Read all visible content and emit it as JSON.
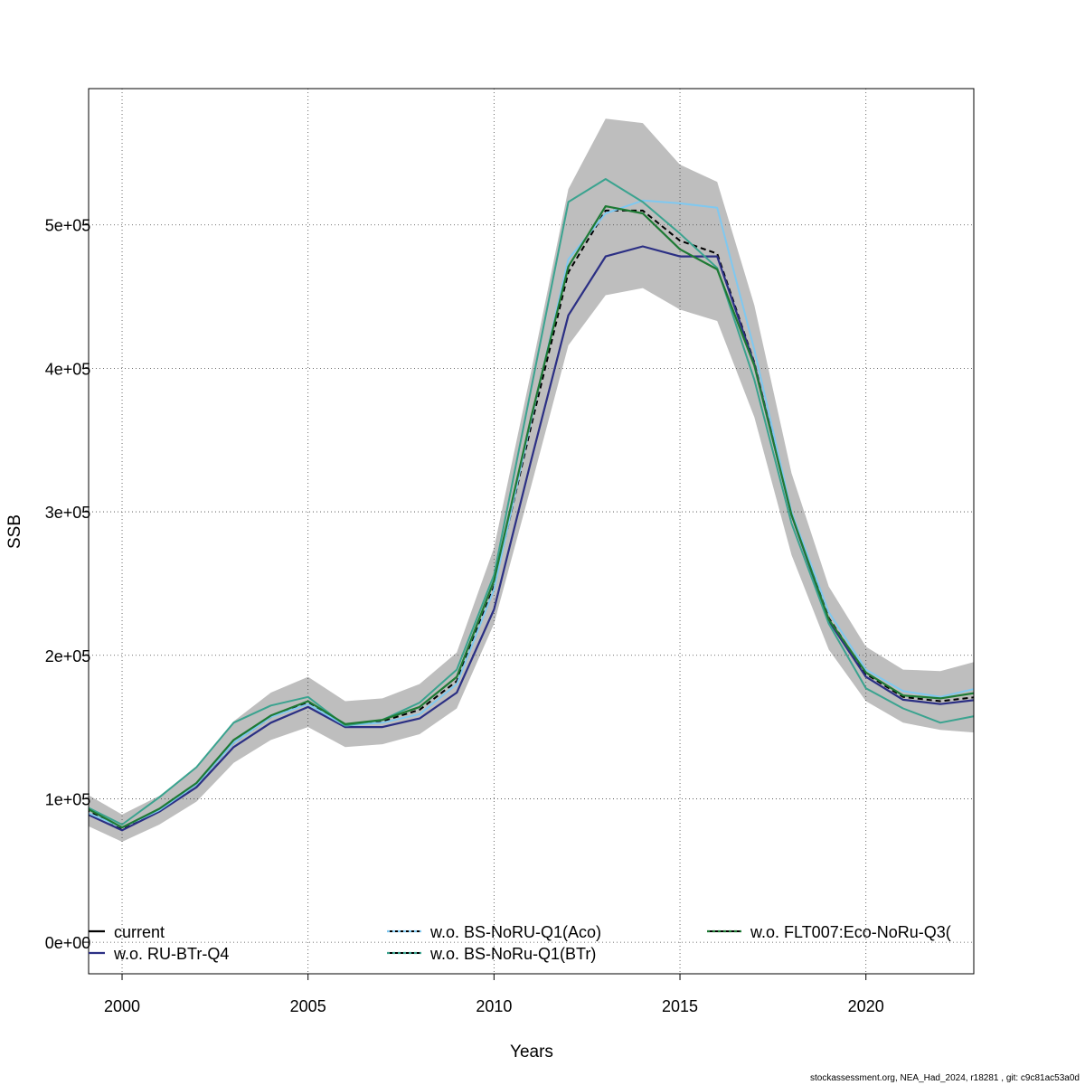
{
  "chart_data": {
    "type": "line",
    "xlabel": "Years",
    "ylabel": "SSB",
    "xlim": [
      1999.1,
      2022.9
    ],
    "ylim": [
      -22000,
      595000
    ],
    "x_ticks": [
      2000,
      2005,
      2010,
      2015,
      2020
    ],
    "x_tick_labels": [
      "2000",
      "2005",
      "2010",
      "2015",
      "2020"
    ],
    "y_ticks": [
      0,
      100000,
      200000,
      300000,
      400000,
      500000
    ],
    "y_tick_labels": [
      "0e+00",
      "1e+05",
      "2e+05",
      "3e+05",
      "4e+05",
      "5e+05"
    ],
    "grid": true,
    "legend_position": "bottom",
    "x": [
      1999,
      2000,
      2001,
      2002,
      2003,
      2004,
      2005,
      2006,
      2007,
      2008,
      2009,
      2010,
      2011,
      2012,
      2013,
      2014,
      2015,
      2016,
      2017,
      2018,
      2019,
      2020,
      2021,
      2022,
      2023
    ],
    "band": {
      "lower": [
        82000,
        70000,
        82000,
        98000,
        125000,
        141000,
        150000,
        136000,
        138000,
        145000,
        163000,
        222000,
        318000,
        416000,
        451000,
        456000,
        441000,
        433000,
        366000,
        270000,
        204000,
        168000,
        153000,
        148000,
        146000
      ],
      "upper": [
        104000,
        89000,
        102000,
        122000,
        154000,
        174000,
        185000,
        168000,
        170000,
        180000,
        202000,
        275000,
        398000,
        525000,
        574000,
        571000,
        542000,
        530000,
        444000,
        327000,
        248000,
        206000,
        190000,
        189000,
        196000
      ],
      "color": "#bebebe"
    },
    "series": [
      {
        "name": "current",
        "color": "#000000",
        "dash": "6,4",
        "width": 2,
        "values": [
          93000,
          79000,
          92000,
          110000,
          139000,
          157000,
          167000,
          152000,
          154000,
          162000,
          182000,
          248000,
          360000,
          467000,
          510000,
          510000,
          489000,
          480000,
          404000,
          298000,
          226000,
          187000,
          171000,
          168000,
          171000
        ]
      },
      {
        "name": "w.o. RU-BTr-Q4",
        "color": "#2b2f84",
        "dash": "",
        "width": 2.2,
        "values": [
          90000,
          78000,
          91000,
          108000,
          136000,
          153000,
          164000,
          150000,
          150000,
          156000,
          174000,
          232000,
          336000,
          437000,
          478000,
          485000,
          478000,
          478000,
          403000,
          298000,
          224000,
          185000,
          169000,
          166000,
          169000
        ]
      },
      {
        "name": "w.o. BS-NoRU-Q1(Aco)",
        "color": "#7fc8f0",
        "dash": "",
        "width": 2,
        "values": [
          91000,
          80000,
          92000,
          110000,
          139000,
          157000,
          166000,
          151000,
          153000,
          159000,
          180000,
          246000,
          364000,
          476000,
          508000,
          517000,
          515000,
          512000,
          413000,
          300000,
          230000,
          190000,
          175000,
          171000,
          177000
        ]
      },
      {
        "name": "w.o. BS-NoRu-Q1(BTr)",
        "color": "#3aa38f",
        "dash": "",
        "width": 2,
        "values": [
          95000,
          82000,
          101000,
          122000,
          153000,
          165000,
          171000,
          151000,
          155000,
          167000,
          190000,
          256000,
          386000,
          516000,
          532000,
          516000,
          494000,
          470000,
          392000,
          292000,
          222000,
          177000,
          163000,
          153000,
          158000
        ]
      },
      {
        "name": "w.o. FLT007:Eco-NoRu-Q3(",
        "color": "#1e7a34",
        "dash": "",
        "width": 2.2,
        "values": [
          94000,
          80000,
          93000,
          111000,
          141000,
          158000,
          168000,
          152000,
          155000,
          164000,
          185000,
          252000,
          366000,
          471000,
          513000,
          508000,
          483000,
          469000,
          402000,
          298000,
          225000,
          188000,
          172000,
          170000,
          174000
        ]
      }
    ],
    "legend": [
      {
        "label": "current",
        "color": "#000000",
        "dash": ""
      },
      {
        "label": "w.o. RU-BTr-Q4",
        "color": "#2b2f84",
        "dash": ""
      },
      {
        "label": "w.o. BS-NoRU-Q1(Aco)",
        "color": "#7fc8f0",
        "dash": "3,3"
      },
      {
        "label": "w.o. BS-NoRu-Q1(BTr)",
        "color": "#3aa38f",
        "dash": "3,3"
      },
      {
        "label": "w.o. FLT007:Eco-NoRu-Q3(",
        "color": "#1e7a34",
        "dash": "3,3"
      }
    ]
  },
  "footer": "stockassessment.org, NEA_Had_2024, r18281 , git: c9c81ac53a0d"
}
